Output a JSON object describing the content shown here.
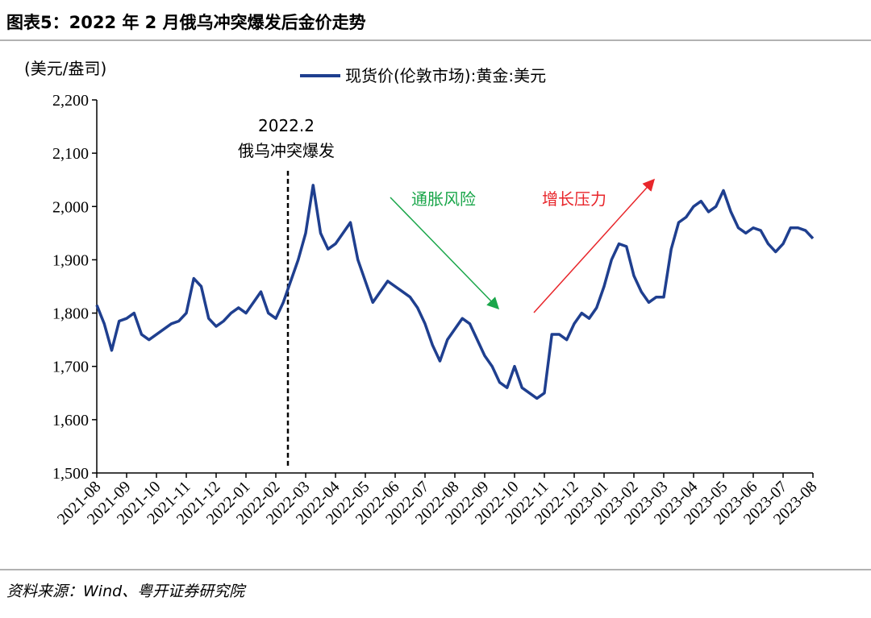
{
  "chart_data": {
    "type": "line",
    "title": "图表5：2022 年 2 月俄乌冲突爆发后金价走势",
    "y_label": "(美元/盎司)",
    "source": "资料来源：Wind、粤开证券研究院",
    "annotations": {
      "event_date": "2022.2",
      "event": "俄乌冲突爆发",
      "down": "通胀风险",
      "up": "增长压力"
    },
    "categories": [
      "2021-08",
      null,
      null,
      null,
      "2021-09",
      null,
      null,
      null,
      "2021-10",
      null,
      null,
      null,
      "2021-11",
      null,
      null,
      null,
      "2021-12",
      null,
      null,
      null,
      "2022-01",
      null,
      null,
      null,
      "2022-02",
      null,
      null,
      null,
      "2022-03",
      null,
      null,
      null,
      "2022-04",
      null,
      null,
      null,
      "2022-05",
      null,
      null,
      null,
      "2022-06",
      null,
      null,
      null,
      "2022-07",
      null,
      null,
      null,
      "2022-08",
      null,
      null,
      null,
      "2022-09",
      null,
      null,
      null,
      "2022-10",
      null,
      null,
      null,
      "2022-11",
      null,
      null,
      null,
      "2022-12",
      null,
      null,
      null,
      "2023-01",
      null,
      null,
      null,
      "2023-02",
      null,
      null,
      null,
      "2023-03",
      null,
      null,
      null,
      "2023-04",
      null,
      null,
      null,
      "2023-05",
      null,
      null,
      null,
      "2023-06",
      null,
      null,
      null,
      "2023-07",
      null,
      null,
      null,
      "2023-08"
    ],
    "series": [
      {
        "name": "现货价(伦敦市场):黄金:美元",
        "color": "#1f3f8f",
        "values": [
          1815,
          1780,
          1730,
          1785,
          1790,
          1800,
          1760,
          1750,
          1760,
          1770,
          1780,
          1785,
          1800,
          1865,
          1850,
          1790,
          1775,
          1785,
          1800,
          1810,
          1800,
          1820,
          1840,
          1800,
          1790,
          1820,
          1860,
          1900,
          1950,
          2040,
          1950,
          1920,
          1930,
          1950,
          1970,
          1900,
          1860,
          1820,
          1840,
          1860,
          1850,
          1840,
          1830,
          1810,
          1780,
          1740,
          1710,
          1750,
          1770,
          1790,
          1780,
          1750,
          1720,
          1700,
          1670,
          1660,
          1700,
          1660,
          1650,
          1640,
          1650,
          1760,
          1760,
          1750,
          1780,
          1800,
          1790,
          1810,
          1850,
          1900,
          1930,
          1925,
          1870,
          1840,
          1820,
          1830,
          1830,
          1920,
          1970,
          1980,
          2000,
          2010,
          1990,
          2000,
          2030,
          1990,
          1960,
          1950,
          1960,
          1955,
          1930,
          1915,
          1930,
          1960,
          1960,
          1955,
          1940
        ]
      }
    ],
    "ylim": [
      1500,
      2200
    ],
    "yticks": [
      {
        "value": 1500,
        "label": "1,500"
      },
      {
        "value": 1600,
        "label": "1,600"
      },
      {
        "value": 1700,
        "label": "1,700"
      },
      {
        "value": 1800,
        "label": "1,800"
      },
      {
        "value": 1900,
        "label": "1,900"
      },
      {
        "value": 2000,
        "label": "2,000"
      },
      {
        "value": 2100,
        "label": "2,100"
      },
      {
        "value": 2200,
        "label": "2,200"
      }
    ]
  }
}
